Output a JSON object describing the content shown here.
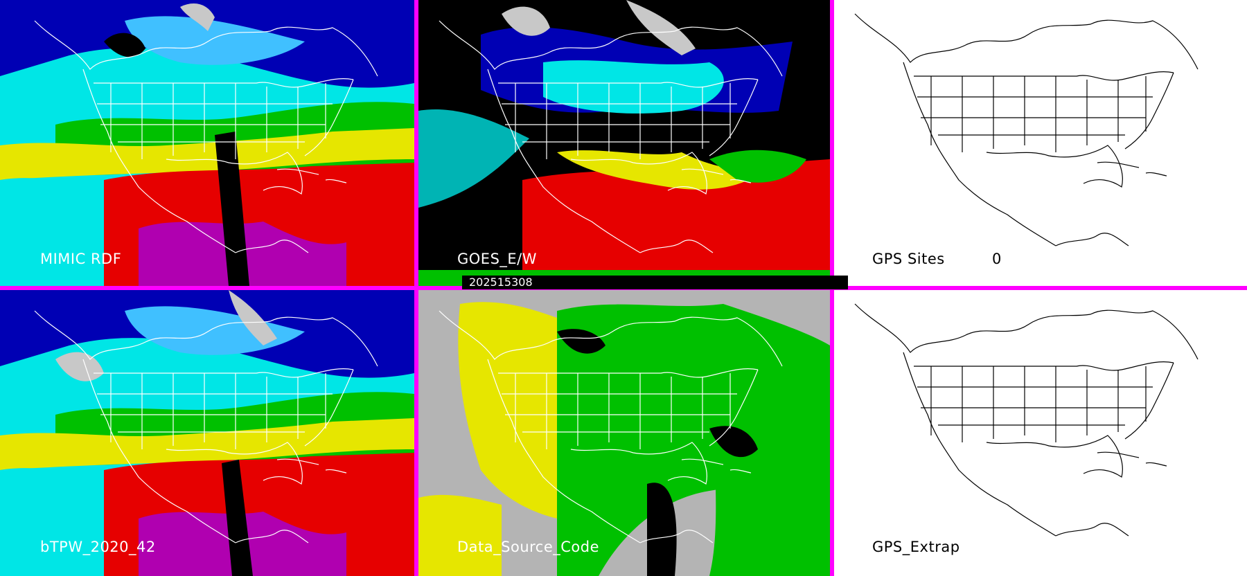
{
  "panels": {
    "mimic": {
      "label": "MIMIC RDF"
    },
    "goes": {
      "label": "GOES_E/W"
    },
    "gps_sites": {
      "label": "GPS Sites",
      "count": "0"
    },
    "btpw": {
      "label": "bTPW_2020_42"
    },
    "data_source": {
      "label": "Data_Source_Code"
    },
    "gps_extrap": {
      "label": "GPS_Extrap"
    }
  },
  "timestamp": "202515308",
  "colors": {
    "panel_border": "#ff00ff",
    "map_lines_on_imagery": "#ffffff",
    "map_lines_on_blank": "#000000",
    "blank_background": "#ffffff"
  }
}
